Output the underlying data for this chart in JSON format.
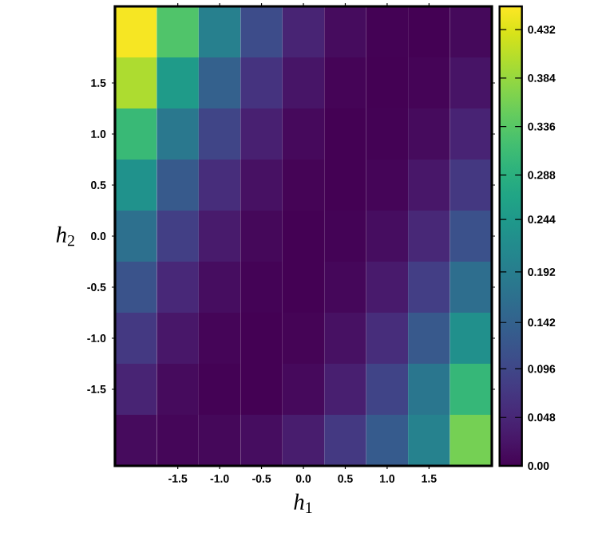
{
  "chart_data": {
    "type": "heatmap",
    "xlabel": "*h*$_{1}$",
    "ylabel": "*h*$_{2}$",
    "categories": [
      null,
      "-1.5",
      "-1.0",
      "-0.5",
      "0.0",
      "0.5",
      "1.0",
      "1.5",
      null
    ],
    "y_categories": [
      null,
      "1.5",
      "1.0",
      "0.5",
      "0.0",
      "-0.5",
      "-1.0",
      "-1.5",
      null
    ],
    "clim": [
      0,
      0.455
    ],
    "cticks": [
      {
        "value": 0,
        "label": "0.00"
      },
      0.048,
      0.096,
      0.142,
      0.192,
      0.244,
      0.288,
      0.336,
      0.384,
      0.432
    ],
    "cells": [
      [
        0.45,
        0.33,
        0.197,
        0.105,
        0.045,
        0.013,
        0.001,
        0.0,
        0.009
      ],
      [
        0.4,
        0.249,
        0.139,
        0.067,
        0.024,
        0.004,
        0.0,
        0.004,
        0.023
      ],
      [
        0.307,
        0.182,
        0.093,
        0.039,
        0.01,
        0.0,
        0.001,
        0.012,
        0.044
      ],
      [
        0.231,
        0.127,
        0.058,
        0.019,
        0.003,
        0.0,
        0.005,
        0.027,
        0.073
      ],
      [
        0.167,
        0.084,
        0.032,
        0.008,
        0.0,
        0.002,
        0.015,
        0.05,
        0.113
      ],
      [
        0.115,
        0.051,
        0.015,
        0.002,
        0.0,
        0.007,
        0.031,
        0.083,
        0.164
      ],
      [
        0.075,
        0.027,
        0.005,
        0.0,
        0.003,
        0.019,
        0.057,
        0.125,
        0.228
      ],
      [
        0.045,
        0.012,
        0.001,
        0.0,
        0.01,
        0.038,
        0.092,
        0.179,
        0.303
      ],
      [
        0.012,
        0.006,
        0.008,
        0.015,
        0.035,
        0.075,
        0.13,
        0.2,
        0.36
      ]
    ]
  }
}
